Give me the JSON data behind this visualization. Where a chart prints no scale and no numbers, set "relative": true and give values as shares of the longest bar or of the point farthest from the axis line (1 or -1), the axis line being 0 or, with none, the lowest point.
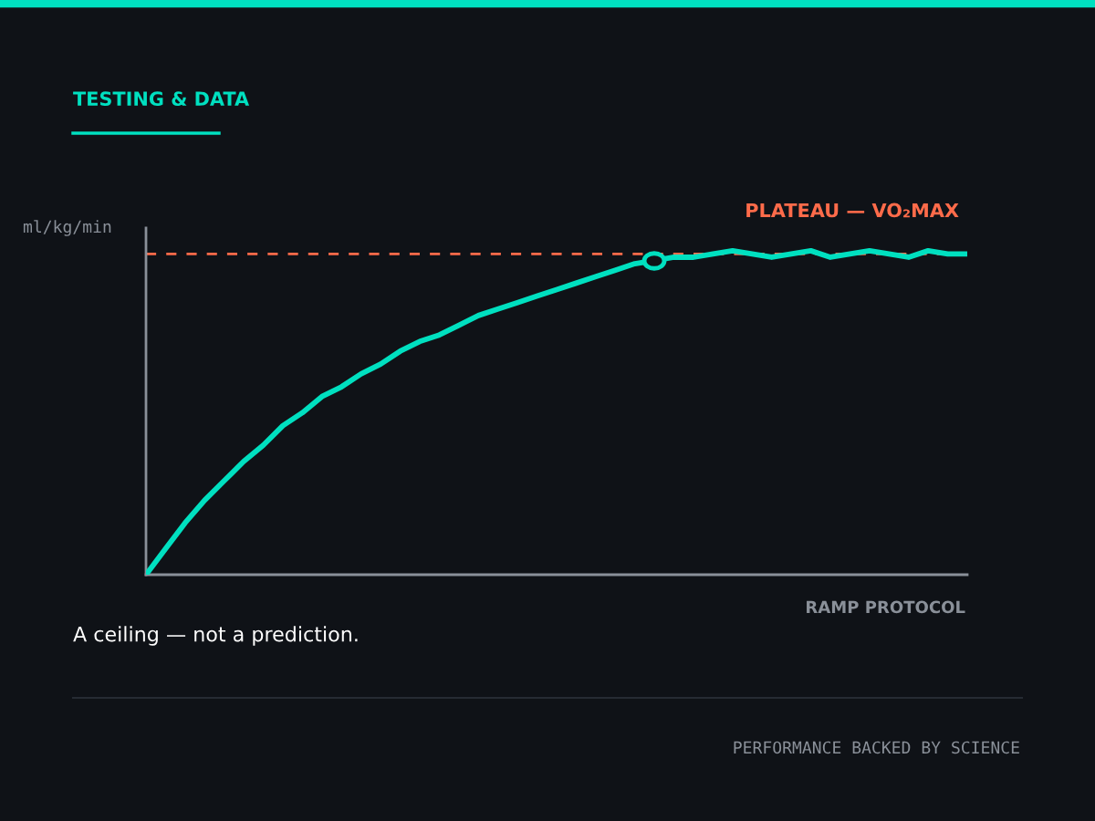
{
  "chart_data": {
    "type": "line",
    "title": "TESTING & DATA",
    "ylabel": "ml/kg/min",
    "xlabel": "RAMP PROTOCOL",
    "relative": true,
    "categories": [
      null,
      null,
      null,
      null,
      null,
      null,
      null,
      null,
      null,
      null,
      null,
      null,
      null,
      null,
      null,
      null,
      null,
      null,
      null,
      null,
      null,
      null,
      null,
      null,
      null,
      null,
      null,
      null,
      null,
      null,
      null,
      null,
      null,
      null,
      null,
      null,
      null,
      null,
      null,
      null,
      null,
      null,
      null
    ],
    "series": [
      {
        "color": "#00e0c0",
        "marker": "none",
        "line_style": "solid",
        "values": [
          0,
          0.08,
          0.16,
          0.23,
          0.29,
          0.35,
          0.4,
          0.46,
          0.5,
          0.55,
          0.58,
          0.62,
          0.65,
          0.69,
          0.72,
          0.74,
          0.77,
          0.8,
          0.82,
          0.84,
          0.86,
          0.88,
          0.9,
          0.92,
          0.94,
          0.96,
          0.97,
          0.98,
          0.98,
          0.99,
          1,
          0.99,
          0.98,
          0.99,
          1,
          0.98,
          0.99,
          1,
          0.99,
          0.98,
          1,
          0.99,
          0.99
        ]
      }
    ],
    "ref_lines": [
      {
        "axis": "y",
        "value": 0.99,
        "label": "PLATEAU — VO₂MAX",
        "color": "#ff6b4a",
        "line_style": "dashed"
      }
    ],
    "annotations": [
      "A ceiling — not a prediction.",
      "PERFORMANCE BACKED BY SCIENCE"
    ]
  }
}
